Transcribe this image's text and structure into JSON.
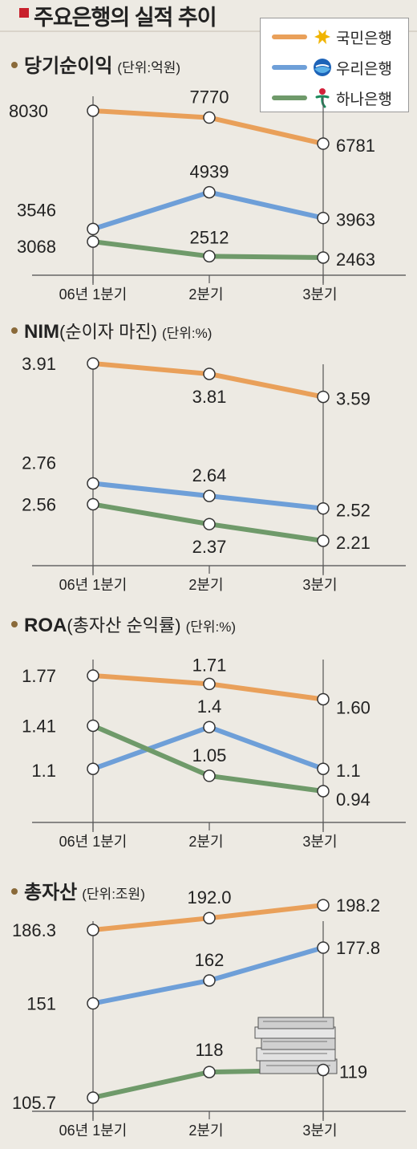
{
  "title": "주요은행의 실적 추이",
  "legend": [
    {
      "name": "국민은행",
      "color": "#e9a05a",
      "logo": "kb-star-logo"
    },
    {
      "name": "우리은행",
      "color": "#6e9fd8",
      "logo": "woori-bank-logo"
    },
    {
      "name": "하나은행",
      "color": "#6f9a6a",
      "logo": "hana-bank-logo"
    }
  ],
  "chart_data": [
    {
      "type": "line",
      "title": "당기순이익",
      "title_extra": "",
      "unit": "(단위:억원)",
      "categories": [
        "06년 1분기",
        "2분기",
        "3분기"
      ],
      "series": [
        {
          "name": "국민은행",
          "values": [
            8030,
            7770,
            6781
          ],
          "labels": [
            "8030",
            "7770",
            "6781"
          ]
        },
        {
          "name": "우리은행",
          "values": [
            3546,
            4939,
            3963
          ],
          "labels": [
            "3546",
            "4939",
            "3963"
          ]
        },
        {
          "name": "하나은행",
          "values": [
            3068,
            2512,
            2463
          ],
          "labels": [
            "3068",
            "2512",
            "2463"
          ]
        }
      ]
    },
    {
      "type": "line",
      "title": "NIM",
      "title_extra": "(순이자 마진)",
      "unit": "(단위:%)",
      "categories": [
        "06년 1분기",
        "2분기",
        "3분기"
      ],
      "series": [
        {
          "name": "국민은행",
          "values": [
            3.91,
            3.81,
            3.59
          ],
          "labels": [
            "3.91",
            "3.81",
            "3.59"
          ]
        },
        {
          "name": "우리은행",
          "values": [
            2.76,
            2.64,
            2.52
          ],
          "labels": [
            "2.76",
            "2.64",
            "2.52"
          ]
        },
        {
          "name": "하나은행",
          "values": [
            2.56,
            2.37,
            2.21
          ],
          "labels": [
            "2.56",
            "2.37",
            "2.21"
          ]
        }
      ]
    },
    {
      "type": "line",
      "title": "ROA",
      "title_extra": "(총자산 순익률)",
      "unit": "(단위:%)",
      "categories": [
        "06년 1분기",
        "2분기",
        "3분기"
      ],
      "series": [
        {
          "name": "국민은행",
          "values": [
            1.77,
            1.71,
            1.6
          ],
          "labels": [
            "1.77",
            "1.71",
            "1.60"
          ]
        },
        {
          "name": "우리은행",
          "values": [
            1.1,
            1.4,
            1.1
          ],
          "labels": [
            "1.1",
            "1.4",
            "1.1"
          ]
        },
        {
          "name": "하나은행",
          "values": [
            1.41,
            1.05,
            0.94
          ],
          "labels": [
            "1.41",
            "1.05",
            "0.94"
          ]
        }
      ]
    },
    {
      "type": "line",
      "title": "총자산",
      "title_extra": "",
      "unit": "(단위:조원)",
      "categories": [
        "06년 1분기",
        "2분기",
        "3분기"
      ],
      "series": [
        {
          "name": "국민은행",
          "values": [
            186.3,
            192.0,
            198.2
          ],
          "labels": [
            "186.3",
            "192.0",
            "198.2"
          ]
        },
        {
          "name": "우리은행",
          "values": [
            151,
            162,
            177.8
          ],
          "labels": [
            "151",
            "162",
            "177.8"
          ]
        },
        {
          "name": "하나은행",
          "values": [
            105.7,
            118,
            119
          ],
          "labels": [
            "105.7",
            "118",
            "119"
          ]
        }
      ]
    }
  ]
}
